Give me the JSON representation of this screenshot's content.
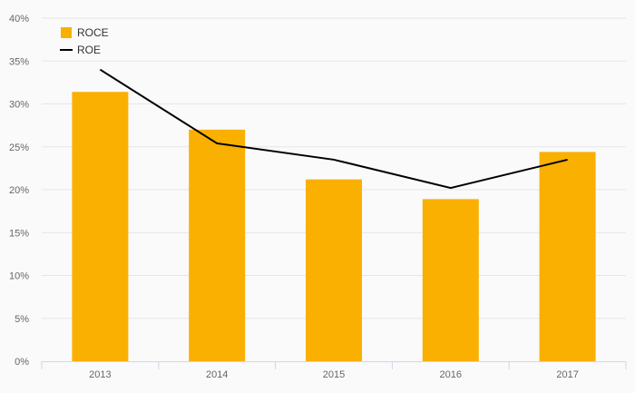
{
  "chart_data": {
    "type": "bar",
    "categories": [
      "2013",
      "2014",
      "2015",
      "2016",
      "2017"
    ],
    "series": [
      {
        "name": "ROCE",
        "type": "bar",
        "values": [
          31.4,
          27.0,
          21.2,
          18.9,
          24.4
        ],
        "color": "#f9b000"
      },
      {
        "name": "ROE",
        "type": "line",
        "values": [
          34.0,
          25.4,
          23.5,
          20.2,
          23.5
        ],
        "color": "#000000"
      }
    ],
    "ylim": [
      0,
      40
    ],
    "yticks": [
      0,
      5,
      10,
      15,
      20,
      25,
      30,
      35,
      40
    ],
    "ytick_labels": [
      "0%",
      "5%",
      "10%",
      "15%",
      "20%",
      "25%",
      "30%",
      "35%",
      "40%"
    ],
    "grid": true,
    "legend_position": "top-left",
    "colors": {
      "grid": "#e6e6e6",
      "axis": "#ccd6eb",
      "text": "#666666"
    }
  }
}
